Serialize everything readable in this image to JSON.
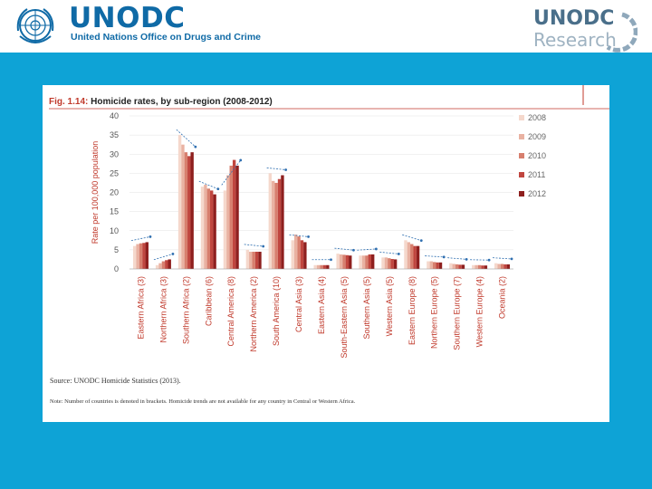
{
  "header": {
    "brand_title": "UNODC",
    "brand_subtitle": "United Nations Office on Drugs and Crime",
    "research_title": "UNODC",
    "research_subtitle": "Research",
    "logo_icon": "un-emblem-icon",
    "research_icon": "research-ring-icon"
  },
  "colors": {
    "band": "#0ea3d6",
    "brand": "#0f6aa6",
    "series": [
      "#f5d8cc",
      "#e9b2a2",
      "#d77f6e",
      "#c0463f",
      "#8e1f1e"
    ],
    "trend_arrow": "#2f6fb0"
  },
  "figure": {
    "number": "Fig. 1.14:",
    "title": "Homicide rates, by sub-region (2008-2012)",
    "source": "Source: UNODC Homicide Statistics (2013).",
    "note": "Note: Number of countries is denoted in brackets. Homicide trends are not available for any country in Central or Western Africa."
  },
  "chart_data": {
    "type": "bar",
    "ylabel": "Rate per 100,000 population",
    "ylim": [
      0,
      40
    ],
    "yticks": [
      0,
      5,
      10,
      15,
      20,
      25,
      30,
      35,
      40
    ],
    "grid": true,
    "legend_position": "right",
    "categories": [
      "Eastern Africa (3)",
      "Northern Africa (3)",
      "Southern Africa (2)",
      "Caribbean (6)",
      "Central America (8)",
      "Northern America (2)",
      "South America (10)",
      "Central Asia (3)",
      "Eastern Asia (4)",
      "South-Eastern Asia (5)",
      "Southern Asia (5)",
      "Western Asia (5)",
      "Eastern Europe (8)",
      "Northern Europe (5)",
      "Southern Europe (7)",
      "Western Europe (4)",
      "Oceania (2)"
    ],
    "series": [
      {
        "name": "2008",
        "values": [
          6.0,
          1.0,
          35.0,
          21.5,
          20.5,
          5.0,
          25.0,
          7.5,
          1.0,
          4.0,
          3.5,
          3.0,
          7.5,
          2.0,
          1.5,
          1.0,
          1.5
        ]
      },
      {
        "name": "2009",
        "values": [
          6.5,
          1.5,
          32.5,
          22.0,
          24.5,
          4.5,
          23.0,
          9.0,
          1.0,
          3.8,
          3.5,
          3.0,
          7.0,
          2.0,
          1.3,
          1.0,
          1.3
        ]
      },
      {
        "name": "2010",
        "values": [
          6.7,
          2.0,
          30.5,
          21.0,
          27.0,
          4.5,
          22.5,
          8.5,
          1.0,
          3.7,
          3.5,
          2.8,
          6.5,
          1.8,
          1.2,
          1.0,
          1.3
        ]
      },
      {
        "name": "2011",
        "values": [
          6.8,
          2.3,
          29.5,
          20.5,
          28.5,
          4.5,
          23.5,
          7.5,
          1.0,
          3.6,
          3.8,
          2.6,
          6.0,
          1.7,
          1.1,
          0.9,
          1.2
        ]
      },
      {
        "name": "2012",
        "values": [
          7.0,
          2.5,
          30.5,
          19.5,
          27.0,
          4.5,
          24.5,
          7.0,
          1.0,
          3.5,
          3.8,
          2.5,
          6.0,
          1.7,
          1.1,
          0.9,
          1.2
        ]
      }
    ]
  }
}
